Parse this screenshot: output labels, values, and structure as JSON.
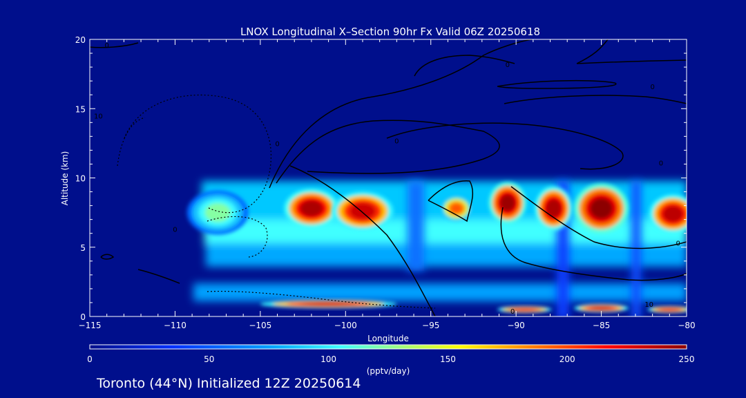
{
  "chart_data": {
    "type": "heatmap",
    "title": "LNOX Longitudinal X–Section 90hr  Fx Valid 06Z 20250618",
    "xlabel": "Longitude",
    "ylabel": "Altitude (km)",
    "xlim": [
      -115,
      -80
    ],
    "ylim": [
      0,
      20
    ],
    "x_ticks": [
      -115,
      -110,
      -105,
      -100,
      -95,
      -90,
      -85,
      -80
    ],
    "x_tick_labels": [
      "−115",
      "−110",
      "−105",
      "−100",
      "−95",
      "−90",
      "−85",
      "−80"
    ],
    "y_ticks": [
      0,
      5,
      10,
      15,
      20
    ],
    "y_tick_labels": [
      "0",
      "5",
      "10",
      "15",
      "20"
    ],
    "colorbar": {
      "min": 0,
      "max": 250,
      "ticks": [
        0,
        50,
        100,
        150,
        200,
        250
      ],
      "tick_labels": [
        "0",
        "50",
        "100",
        "150",
        "200",
        "250"
      ],
      "unit": "(pptv/day)",
      "colors": [
        "#000f8c",
        "#0030ff",
        "#00a0ff",
        "#40ffff",
        "#ffff00",
        "#ff8000",
        "#ff0000",
        "#8c0000"
      ]
    },
    "regions": [
      {
        "x": -107.5,
        "y": 7.5,
        "value": 120,
        "rx": 1.8,
        "ry": 1.6
      },
      {
        "x": -102,
        "y": 7.8,
        "value": 240,
        "rx": 1.6,
        "ry": 1.4
      },
      {
        "x": -99,
        "y": 7.6,
        "value": 230,
        "rx": 1.8,
        "ry": 1.4
      },
      {
        "x": -93.5,
        "y": 7.8,
        "value": 190,
        "rx": 0.9,
        "ry": 0.9
      },
      {
        "x": -90.5,
        "y": 8.2,
        "value": 245,
        "rx": 1.1,
        "ry": 1.5
      },
      {
        "x": -87.8,
        "y": 7.8,
        "value": 240,
        "rx": 1.1,
        "ry": 1.6
      },
      {
        "x": -85,
        "y": 7.8,
        "value": 250,
        "rx": 1.6,
        "ry": 1.8
      },
      {
        "x": -80.8,
        "y": 7.4,
        "value": 235,
        "rx": 1.4,
        "ry": 1.4
      },
      {
        "x": -101,
        "y": 0.9,
        "value": 230,
        "rx": 4.0,
        "ry": 0.3
      },
      {
        "x": -89.5,
        "y": 0.5,
        "value": 220,
        "rx": 1.6,
        "ry": 0.25
      },
      {
        "x": -85,
        "y": 0.6,
        "value": 230,
        "rx": 1.6,
        "ry": 0.3
      },
      {
        "x": -81,
        "y": 0.5,
        "value": 220,
        "rx": 1.3,
        "ry": 0.25
      }
    ],
    "contour_labels": [
      {
        "x": -114,
        "y": 19.6,
        "text": "0"
      },
      {
        "x": -114.5,
        "y": 14.5,
        "text": "10"
      },
      {
        "x": -110,
        "y": 6.3,
        "text": "0"
      },
      {
        "x": -104,
        "y": 12.5,
        "text": "0"
      },
      {
        "x": -97,
        "y": 12.7,
        "text": "0"
      },
      {
        "x": -90.5,
        "y": 18.2,
        "text": "0"
      },
      {
        "x": -82,
        "y": 16.6,
        "text": "0"
      },
      {
        "x": -81.5,
        "y": 11.1,
        "text": "0"
      },
      {
        "x": -80.5,
        "y": 5.3,
        "text": "0"
      },
      {
        "x": -90.2,
        "y": 0.4,
        "text": "0"
      },
      {
        "x": -82.2,
        "y": 0.9,
        "text": "10"
      }
    ]
  },
  "footer": {
    "caption": "Toronto (44°N) Initialized 12Z 20250614"
  }
}
